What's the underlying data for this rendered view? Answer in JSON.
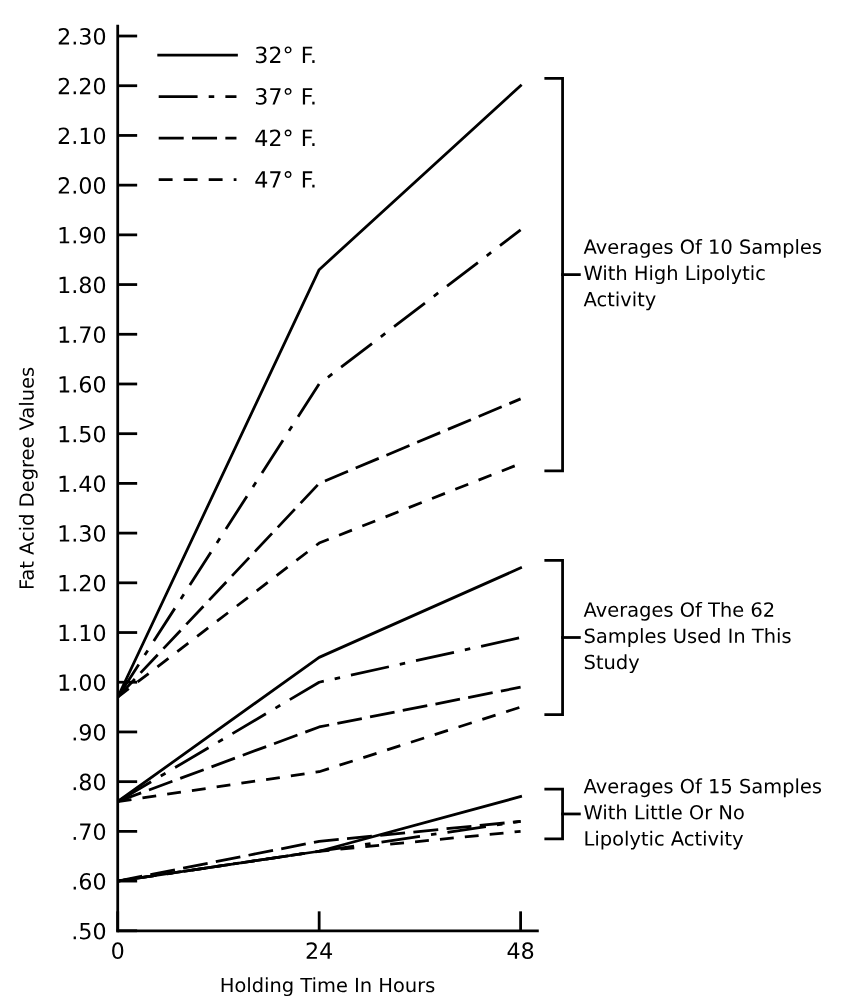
{
  "chart_data": {
    "type": "line",
    "xlabel": "Holding Time In Hours",
    "ylabel": "Fat Acid Degree Values",
    "x": [
      0,
      24,
      48
    ],
    "series": [
      {
        "name": "32° F.",
        "color": "#000000",
        "line_style": "solid",
        "values": [
          0.97,
          1.83,
          2.2
        ]
      },
      {
        "name": "37° F.",
        "color": "#000000",
        "line_style": "dashdot",
        "values": [
          0.97,
          1.6,
          1.91
        ]
      },
      {
        "name": "42° F.",
        "color": "#000000",
        "line_style": "longdash",
        "values": [
          0.97,
          1.4,
          1.57
        ]
      },
      {
        "name": "47° F.",
        "color": "#000000",
        "line_style": "dashed",
        "values": [
          0.97,
          1.28,
          1.44
        ]
      },
      {
        "color": "#000000",
        "line_style": "solid",
        "values": [
          0.76,
          1.05,
          1.23
        ]
      },
      {
        "color": "#000000",
        "line_style": "dashdot",
        "values": [
          0.76,
          1.0,
          1.09
        ]
      },
      {
        "color": "#000000",
        "line_style": "longdash",
        "values": [
          0.76,
          0.91,
          0.99
        ]
      },
      {
        "color": "#000000",
        "line_style": "dashed",
        "values": [
          0.76,
          0.82,
          0.95
        ]
      },
      {
        "color": "#000000",
        "line_style": "solid",
        "values": [
          0.6,
          0.66,
          0.77
        ]
      },
      {
        "color": "#000000",
        "line_style": "dashdot",
        "values": [
          0.6,
          0.66,
          0.72
        ]
      },
      {
        "color": "#000000",
        "line_style": "longdash",
        "values": [
          0.6,
          0.68,
          0.72
        ]
      },
      {
        "color": "#000000",
        "line_style": "dashed",
        "values": [
          0.6,
          0.66,
          0.7
        ]
      }
    ],
    "xlim": [
      0,
      50
    ],
    "xticks": [
      0,
      24,
      48
    ],
    "ylim": [
      0.5,
      2.32
    ],
    "yticks": [
      {
        "value": 0.5,
        "label": ".50"
      },
      {
        "value": 0.6,
        "label": ".60"
      },
      {
        "value": 0.7,
        "label": ".70"
      },
      {
        "value": 0.8,
        "label": ".80"
      },
      {
        "value": 0.9,
        "label": ".90"
      },
      {
        "value": 1.0,
        "label": "1.00"
      },
      {
        "value": 1.1,
        "label": "1.10"
      },
      {
        "value": 1.2,
        "label": "1.20"
      },
      {
        "value": 1.3,
        "label": "1.30"
      },
      {
        "value": 1.4,
        "label": "1.40"
      },
      {
        "value": 1.5,
        "label": "1.50"
      },
      {
        "value": 1.6,
        "label": "1.60"
      },
      {
        "value": 1.7,
        "label": "1.70"
      },
      {
        "value": 1.8,
        "label": "1.80"
      },
      {
        "value": 1.9,
        "label": "1.90"
      },
      {
        "value": 2.0,
        "label": "2.00"
      },
      {
        "value": 2.1,
        "label": "2.10"
      },
      {
        "value": 2.2,
        "label": "2.20"
      },
      {
        "value": 2.3,
        "label": "2.30"
      }
    ],
    "legend": "top left",
    "grid": false,
    "marker": "none",
    "annotations": [
      "Averages Of 10 Samples\nWith High Lipolytic\nActivity",
      "Averages Of The 62\nSamples Used In This\nStudy",
      "Averages Of 15 Samples\nWith Little Or No\nLipolytic Activity"
    ]
  }
}
